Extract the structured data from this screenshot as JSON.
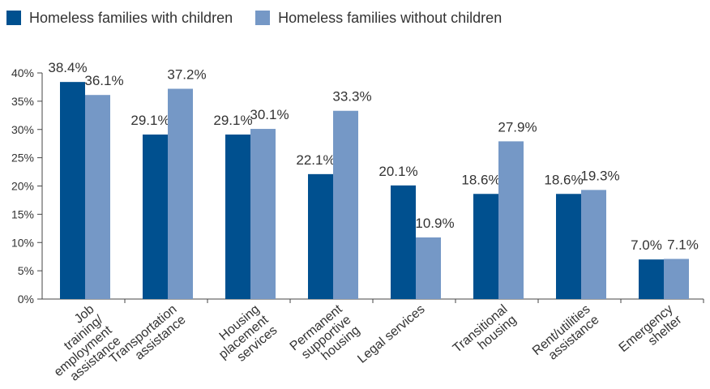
{
  "chart_data": {
    "type": "bar",
    "ylim": [
      0,
      40
    ],
    "yticks": [
      "0%",
      "5%",
      "10%",
      "15%",
      "20%",
      "25%",
      "30%",
      "35%",
      "40%"
    ],
    "grid": false,
    "legend_position": "top-left",
    "categories": [
      [
        "Job",
        "training/",
        "employment",
        "assistance"
      ],
      [
        "Transportation",
        "assistance"
      ],
      [
        "Housing",
        "placement",
        "services"
      ],
      [
        "Permanent",
        "supportive",
        "housing"
      ],
      [
        "Legal services"
      ],
      [
        "Transitional",
        "housing"
      ],
      [
        "Rent/utilities",
        "assistance"
      ],
      [
        "Emergency",
        "shelter"
      ]
    ],
    "series": [
      {
        "name": "Homeless families with children",
        "color": "#00508f",
        "values": [
          38.4,
          29.1,
          29.1,
          22.1,
          20.1,
          18.6,
          18.6,
          7.0
        ],
        "labels": [
          "38.4%",
          "29.1%",
          "29.1%",
          "22.1%",
          "20.1%",
          "18.6%",
          "18.6%",
          "7.0%"
        ]
      },
      {
        "name": "Homeless families without children",
        "color": "#7598c6",
        "values": [
          36.1,
          37.2,
          30.1,
          33.3,
          10.9,
          27.9,
          19.3,
          7.1
        ],
        "labels": [
          "36.1%",
          "37.2%",
          "30.1%",
          "33.3%",
          "10.9%",
          "27.9%",
          "19.3%",
          "7.1%"
        ]
      }
    ]
  }
}
